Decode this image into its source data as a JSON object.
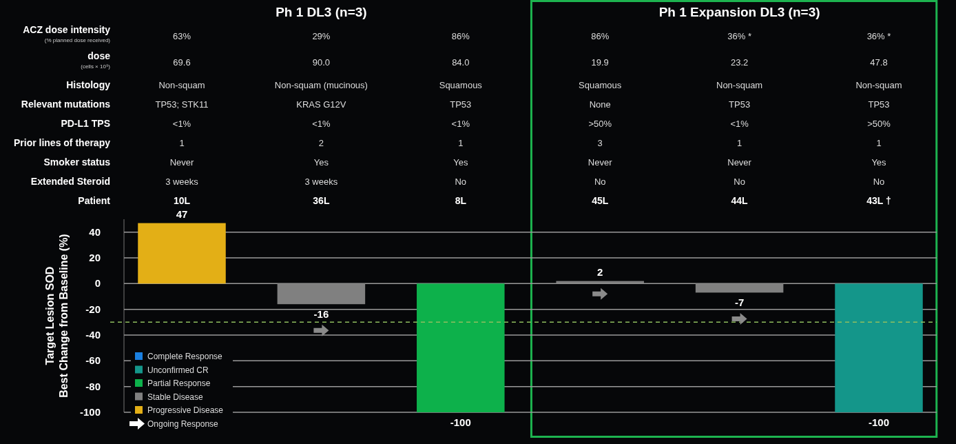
{
  "chart_data": {
    "type": "bar",
    "ylabel": "Target Lesion SOD\nBest Change from Baseline (%)",
    "xlabel": "Patient",
    "categories": [
      "10L",
      "36L",
      "8L",
      "45L",
      "44L",
      "43L †"
    ],
    "series": [
      {
        "name": "Complete Response",
        "color": "#1a7fe0",
        "values": [
          null,
          null,
          null,
          null,
          null,
          null
        ]
      },
      {
        "name": "Unconfirmed CR",
        "color": "#14968a",
        "values": [
          null,
          null,
          null,
          null,
          null,
          -100
        ]
      },
      {
        "name": "Partial Response",
        "color": "#0db14b",
        "values": [
          null,
          null,
          -100,
          null,
          null,
          null
        ]
      },
      {
        "name": "Stable Disease",
        "color": "#808080",
        "values": [
          null,
          -16,
          null,
          2,
          -7,
          null
        ]
      },
      {
        "name": "Progressive Disease",
        "color": "#e3af16",
        "values": [
          47,
          null,
          null,
          null,
          null,
          null
        ]
      }
    ],
    "ylim": [
      -100,
      50
    ],
    "yticks": [
      -100,
      -80,
      -60,
      -40,
      -20,
      0,
      20,
      40
    ],
    "grid": "y",
    "legend": "bottom left",
    "data_labels": true,
    "ref_lines": [
      {
        "axis": "y",
        "value": -30,
        "color": "#8fbf5f",
        "line_style": "dashed"
      }
    ],
    "annotations": [
      "Ph 1 DL3 (n=3)",
      "Ph 1 Expansion DL3 (n=3)",
      "ACZ dose intensity\n(% planned dose received)",
      "63%",
      "29%",
      "86%",
      "86%",
      "36% *",
      "36% *",
      "dose\n(cells × 10⁹)",
      "69.6",
      "90.0",
      "84.0",
      "19.9",
      "23.2",
      "47.8",
      "Histology",
      "Non-squam",
      "Non-squam (mucinous)",
      "Squamous",
      "Squamous",
      "Non-squam",
      "Non-squam",
      "Relevant mutations",
      "TP53; STK11",
      "KRAS G12V",
      "TP53",
      "None",
      "TP53",
      "TP53",
      "PD-L1 TPS",
      "<1%",
      "<1%",
      "<1%",
      ">50%",
      "<1%",
      ">50%",
      "Prior lines of therapy",
      "1",
      "2",
      "1",
      "3",
      "1",
      "1",
      "Smoker status",
      "Never",
      "Yes",
      "Yes",
      "Never",
      "Never",
      "Yes",
      "Extended Steroid",
      "3 weeks",
      "3 weeks",
      "No",
      "No",
      "No",
      "No",
      "Ongoing Response"
    ]
  }
}
